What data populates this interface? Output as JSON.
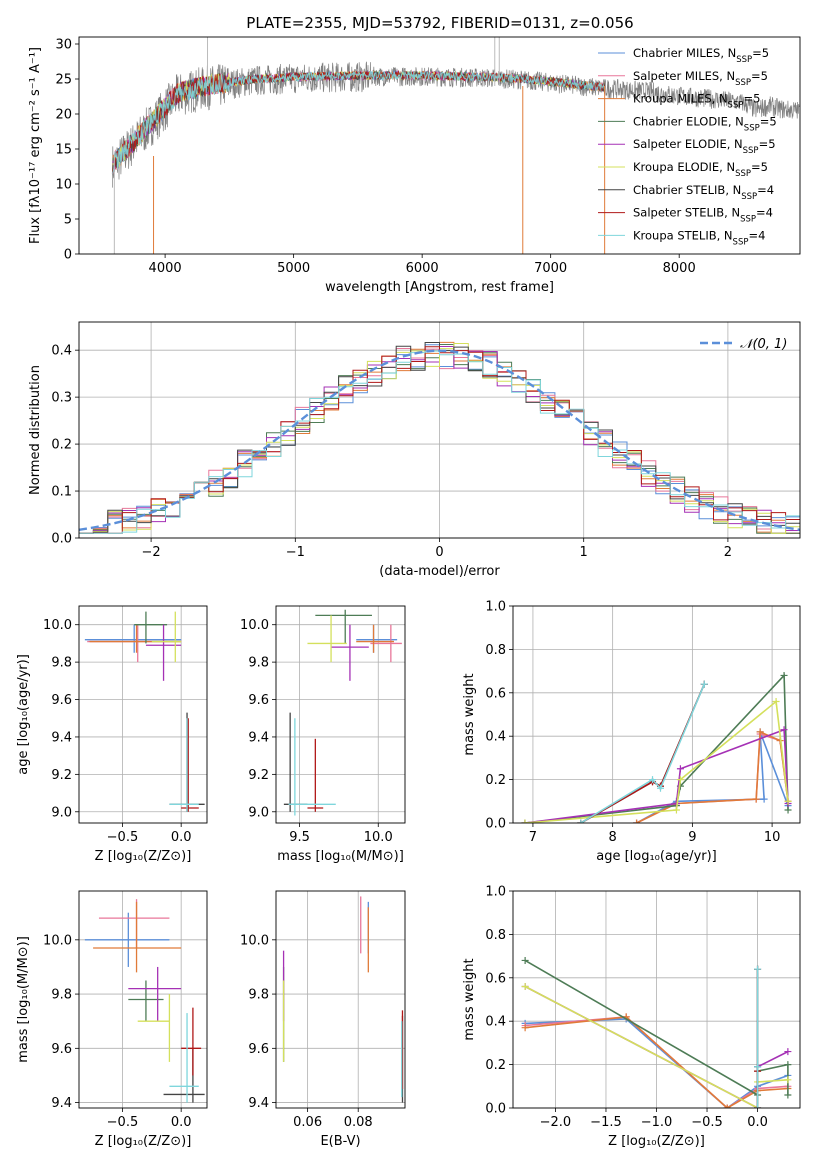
{
  "figure": {
    "title": "PLATE=2355, MJD=53792, FIBERID=0131, z=0.056"
  },
  "palette": {
    "MILES_Chabrier": "#5b8fd9",
    "MILES_Salpeter": "#e8779a",
    "MILES_Kroupa": "#e07b39",
    "ELODIE_Chabrier": "#4e7c56",
    "ELODIE_Salpeter": "#a531b5",
    "ELODIE_Kroupa": "#d4e05c",
    "STELIB_Chabrier": "#444444",
    "STELIB_Salpeter": "#b01818",
    "STELIB_Kroupa": "#7fd6dc",
    "gaussian": "#5b8fd9",
    "data_gray": "#808080"
  },
  "legend_spectrum": [
    {
      "key": "MILES_Chabrier",
      "text": "Chabrier MILES, N",
      "sub": "SSP",
      "eq": "=5"
    },
    {
      "key": "MILES_Salpeter",
      "text": "Salpeter MILES, N",
      "sub": "SSP",
      "eq": "=5"
    },
    {
      "key": "MILES_Kroupa",
      "text": "Kroupa MILES, N",
      "sub": "SSP",
      "eq": "=5"
    },
    {
      "key": "ELODIE_Chabrier",
      "text": "Chabrier ELODIE, N",
      "sub": "SSP",
      "eq": "=5"
    },
    {
      "key": "ELODIE_Salpeter",
      "text": "Salpeter ELODIE, N",
      "sub": "SSP",
      "eq": "=5"
    },
    {
      "key": "ELODIE_Kroupa",
      "text": "Kroupa ELODIE, N",
      "sub": "SSP",
      "eq": "=5"
    },
    {
      "key": "STELIB_Chabrier",
      "text": "Chabrier STELIB, N",
      "sub": "SSP",
      "eq": "=4"
    },
    {
      "key": "STELIB_Salpeter",
      "text": "Salpeter STELIB, N",
      "sub": "SSP",
      "eq": "=4"
    },
    {
      "key": "STELIB_Kroupa",
      "text": "Kroupa STELIB, N",
      "sub": "SSP",
      "eq": "=4"
    }
  ],
  "chart_data": [
    {
      "id": "spectrum",
      "type": "line",
      "xlabel": "wavelength [Angstrom, rest frame]",
      "ylabel": "Flux [fλ10⁻¹⁷ erg cm⁻² s⁻¹ A⁻¹]",
      "xlim": [
        3330,
        8940
      ],
      "ylim": [
        0,
        31
      ],
      "xticks": [
        4000,
        5000,
        6000,
        7000,
        8000
      ],
      "yticks": [
        0,
        5,
        10,
        15,
        20,
        25,
        30
      ],
      "grid": false,
      "continuum_model": {
        "x": [
          3600,
          3700,
          3800,
          3900,
          4000,
          4100,
          4300,
          4500,
          4700,
          5000,
          5500,
          6000,
          6500,
          6800,
          7000,
          7300,
          7500,
          7800,
          8000,
          8300,
          8500,
          8600,
          8700,
          8800,
          8940
        ],
        "y": [
          13,
          15,
          17,
          19,
          21,
          23,
          24,
          24.5,
          25,
          25.3,
          25.5,
          25.5,
          25.3,
          25.0,
          24.6,
          24.0,
          23.7,
          23.3,
          22.7,
          22.2,
          21.7,
          20.7,
          21.3,
          20.8,
          20.6
        ]
      },
      "data_extent": [
        3590,
        7420
      ],
      "spikes": [
        {
          "x": 3605,
          "y": [
            0,
            14
          ],
          "color": "#bbbbbb"
        },
        {
          "x": 3910,
          "y": [
            0,
            14
          ],
          "color": "#e07b39"
        },
        {
          "x": 6783,
          "y": [
            0,
            24
          ],
          "color": "#e07b39"
        },
        {
          "x": 7420,
          "y": [
            0,
            24
          ],
          "color": "#e07b39"
        },
        {
          "x": 4330,
          "y": [
            24,
            31
          ],
          "color": "#bbbbbb"
        },
        {
          "x": 6565,
          "y": [
            24,
            31
          ],
          "color": "#bbbbbb"
        },
        {
          "x": 6600,
          "y": [
            24,
            31
          ],
          "color": "#bbbbbb"
        }
      ],
      "legend_position": "upper right"
    },
    {
      "id": "residuals",
      "type": "line",
      "xlabel": "(data-model)/error",
      "ylabel": "Normed distribution",
      "xlim": [
        -2.5,
        2.5
      ],
      "ylim": [
        0,
        0.46
      ],
      "xticks": [
        -2,
        -1,
        0,
        1,
        2
      ],
      "yticks": [
        0.0,
        0.1,
        0.2,
        0.3,
        0.4
      ],
      "grid": true,
      "histogram_bin_width": 0.1,
      "gaussian_label": "𝒩(0, 1)",
      "legend_position": "upper right"
    },
    {
      "id": "age_vs_Z",
      "type": "scatter",
      "xlabel": "Z [log₁₀(Z/Z⊙)]",
      "ylabel": "age  [log₁₀(age/yr)]",
      "xlim": [
        -0.87,
        0.22
      ],
      "ylim": [
        8.94,
        10.1
      ],
      "xticks": [
        -0.5,
        0.0
      ],
      "yticks": [
        9.0,
        9.2,
        9.4,
        9.6,
        9.8,
        10.0
      ],
      "grid": true,
      "points": [
        {
          "key": "MILES_Chabrier",
          "x": -0.4,
          "y": 9.92,
          "ex": [
            -0.82,
            0.0
          ],
          "ey": [
            9.85,
            10.0
          ]
        },
        {
          "key": "MILES_Salpeter",
          "x": -0.37,
          "y": 9.91,
          "ex": [
            -0.8,
            0.0
          ],
          "ey": [
            9.8,
            10.0
          ]
        },
        {
          "key": "MILES_Kroupa",
          "x": -0.38,
          "y": 9.91,
          "ex": [
            -0.78,
            0.0
          ],
          "ey": [
            9.85,
            10.0
          ]
        },
        {
          "key": "ELODIE_Chabrier",
          "x": -0.3,
          "y": 10.0,
          "ex": [
            -0.4,
            -0.12
          ],
          "ey": [
            9.9,
            10.07
          ]
        },
        {
          "key": "ELODIE_Salpeter",
          "x": -0.15,
          "y": 9.89,
          "ex": [
            -0.3,
            0.0
          ],
          "ey": [
            9.7,
            10.0
          ]
        },
        {
          "key": "ELODIE_Kroupa",
          "x": -0.05,
          "y": 9.91,
          "ex": [
            -0.25,
            0.0
          ],
          "ey": [
            9.8,
            10.07
          ]
        },
        {
          "key": "STELIB_Chabrier",
          "x": 0.05,
          "y": 9.04,
          "ex": [
            -0.1,
            0.2
          ],
          "ey": [
            9.0,
            9.53
          ]
        },
        {
          "key": "STELIB_Salpeter",
          "x": 0.06,
          "y": 9.02,
          "ex": [
            0.0,
            0.15
          ],
          "ey": [
            9.0,
            9.5
          ]
        },
        {
          "key": "STELIB_Kroupa",
          "x": 0.05,
          "y": 9.04,
          "ex": [
            -0.1,
            0.15
          ],
          "ey": [
            9.0,
            9.5
          ]
        }
      ]
    },
    {
      "id": "age_vs_mass",
      "type": "scatter",
      "xlabel": "mass [log₁₀(M/M⊙)]",
      "ylabel": "",
      "xlim": [
        9.35,
        10.17
      ],
      "ylim": [
        8.94,
        10.1
      ],
      "xticks": [
        9.5,
        10.0
      ],
      "yticks": [
        9.0,
        9.2,
        9.4,
        9.6,
        9.8,
        10.0
      ],
      "grid": true,
      "points": [
        {
          "key": "MILES_Chabrier",
          "x": 9.97,
          "y": 9.92,
          "ex": [
            9.86,
            10.12
          ],
          "ey": [
            9.85,
            10.0
          ]
        },
        {
          "key": "MILES_Salpeter",
          "x": 10.08,
          "y": 9.9,
          "ex": [
            9.95,
            10.15
          ],
          "ey": [
            9.8,
            10.0
          ]
        },
        {
          "key": "MILES_Kroupa",
          "x": 9.97,
          "y": 9.91,
          "ex": [
            9.86,
            10.1
          ],
          "ey": [
            9.85,
            10.0
          ]
        },
        {
          "key": "ELODIE_Chabrier",
          "x": 9.79,
          "y": 10.05,
          "ex": [
            9.6,
            9.96
          ],
          "ey": [
            9.9,
            10.08
          ]
        },
        {
          "key": "ELODIE_Salpeter",
          "x": 9.82,
          "y": 9.88,
          "ex": [
            9.7,
            9.94
          ],
          "ey": [
            9.7,
            10.0
          ]
        },
        {
          "key": "ELODIE_Kroupa",
          "x": 9.7,
          "y": 9.9,
          "ex": [
            9.55,
            9.8
          ],
          "ey": [
            9.8,
            10.05
          ]
        },
        {
          "key": "STELIB_Chabrier",
          "x": 9.44,
          "y": 9.04,
          "ex": [
            9.4,
            9.55
          ],
          "ey": [
            9.0,
            9.53
          ]
        },
        {
          "key": "STELIB_Salpeter",
          "x": 9.6,
          "y": 9.02,
          "ex": [
            9.55,
            9.65
          ],
          "ey": [
            9.0,
            9.39
          ]
        },
        {
          "key": "STELIB_Kroupa",
          "x": 9.47,
          "y": 9.04,
          "ex": [
            9.43,
            9.73
          ],
          "ey": [
            8.98,
            9.5
          ]
        }
      ]
    },
    {
      "id": "mass_weight_vs_age",
      "type": "line",
      "xlabel": "age  [log₁₀(age/yr)]",
      "ylabel": "mass weight",
      "xlim": [
        6.75,
        10.35
      ],
      "ylim": [
        0,
        1.0
      ],
      "xticks": [
        7,
        8,
        9,
        10
      ],
      "yticks": [
        0.0,
        0.2,
        0.4,
        0.6,
        0.8,
        1.0
      ],
      "grid": true,
      "series": [
        {
          "key": "MILES_Chabrier",
          "x": [
            8.3,
            8.8,
            9.9,
            9.85,
            10.2
          ],
          "y": [
            0.0,
            0.1,
            0.11,
            0.42,
            0.08
          ]
        },
        {
          "key": "MILES_Salpeter",
          "x": [
            8.3,
            8.8,
            9.8,
            9.85,
            10.1,
            10.2
          ],
          "y": [
            0.0,
            0.09,
            0.11,
            0.41,
            0.38,
            0.1
          ]
        },
        {
          "key": "MILES_Kroupa",
          "x": [
            8.3,
            8.8,
            9.8,
            9.85,
            10.1,
            10.2
          ],
          "y": [
            0.0,
            0.09,
            0.11,
            0.42,
            0.38,
            0.1
          ]
        },
        {
          "key": "ELODIE_Chabrier",
          "x": [
            6.9,
            8.8,
            8.85,
            10.15,
            10.2
          ],
          "y": [
            0.0,
            0.08,
            0.17,
            0.68,
            0.06
          ]
        },
        {
          "key": "ELODIE_Salpeter",
          "x": [
            6.9,
            8.8,
            8.85,
            10.15,
            10.2
          ],
          "y": [
            0.0,
            0.09,
            0.25,
            0.43,
            0.09
          ]
        },
        {
          "key": "ELODIE_Kroupa",
          "x": [
            6.9,
            8.8,
            8.85,
            10.05,
            10.2
          ],
          "y": [
            0.0,
            0.06,
            0.2,
            0.56,
            0.1
          ]
        },
        {
          "key": "STELIB_Chabrier",
          "x": [
            7.6,
            8.5,
            8.6,
            9.15
          ],
          "y": [
            0.0,
            0.19,
            0.17,
            0.64
          ]
        },
        {
          "key": "STELIB_Salpeter",
          "x": [
            7.6,
            8.5,
            8.6,
            9.15
          ],
          "y": [
            0.0,
            0.19,
            0.17,
            0.64
          ]
        },
        {
          "key": "STELIB_Kroupa",
          "x": [
            7.6,
            8.5,
            8.6,
            9.15
          ],
          "y": [
            0.0,
            0.2,
            0.16,
            0.64
          ]
        }
      ]
    },
    {
      "id": "mass_vs_Z",
      "type": "scatter",
      "xlabel": "Z [log₁₀(Z/Z⊙)]",
      "ylabel": "mass [log₁₀(M/M⊙)]",
      "xlim": [
        -0.87,
        0.22
      ],
      "ylim": [
        9.38,
        10.18
      ],
      "xticks": [
        -0.5,
        0.0
      ],
      "yticks": [
        9.4,
        9.6,
        9.8,
        10.0
      ],
      "grid": true,
      "points": [
        {
          "key": "MILES_Chabrier",
          "x": -0.45,
          "y": 10.0,
          "ex": [
            -0.82,
            -0.1
          ],
          "ey": [
            9.9,
            10.1
          ]
        },
        {
          "key": "MILES_Salpeter",
          "x": -0.38,
          "y": 10.08,
          "ex": [
            -0.7,
            -0.1
          ],
          "ey": [
            9.97,
            10.15
          ]
        },
        {
          "key": "MILES_Kroupa",
          "x": -0.38,
          "y": 9.97,
          "ex": [
            -0.75,
            0.0
          ],
          "ey": [
            9.88,
            10.14
          ]
        },
        {
          "key": "ELODIE_Chabrier",
          "x": -0.3,
          "y": 9.78,
          "ex": [
            -0.45,
            -0.15
          ],
          "ey": [
            9.7,
            9.85
          ]
        },
        {
          "key": "ELODIE_Salpeter",
          "x": -0.2,
          "y": 9.82,
          "ex": [
            -0.45,
            0.0
          ],
          "ey": [
            9.7,
            9.9
          ]
        },
        {
          "key": "ELODIE_Kroupa",
          "x": -0.1,
          "y": 9.7,
          "ex": [
            -0.37,
            -0.1
          ],
          "ey": [
            9.55,
            9.8
          ]
        },
        {
          "key": "STELIB_Chabrier",
          "x": 0.1,
          "y": 9.43,
          "ex": [
            -0.15,
            0.2
          ],
          "ey": [
            9.4,
            9.6
          ]
        },
        {
          "key": "STELIB_Salpeter",
          "x": 0.1,
          "y": 9.6,
          "ex": [
            0.0,
            0.17
          ],
          "ey": [
            9.5,
            9.75
          ]
        },
        {
          "key": "STELIB_Kroupa",
          "x": 0.05,
          "y": 9.46,
          "ex": [
            -0.1,
            0.15
          ],
          "ey": [
            9.4,
            9.73
          ]
        }
      ]
    },
    {
      "id": "mass_vs_ebv",
      "type": "scatter",
      "xlabel": "E(B-V)",
      "ylabel": "",
      "xlim": [
        0.0475,
        0.0985
      ],
      "ylim": [
        9.38,
        10.18
      ],
      "xticks": [
        0.06,
        0.08
      ],
      "yticks": [
        9.4,
        9.6,
        9.8,
        10.0
      ],
      "grid": true,
      "points": [
        {
          "key": "MILES_Chabrier",
          "x": 0.084,
          "y": 10.0,
          "ey": [
            9.95,
            10.14
          ]
        },
        {
          "key": "MILES_Salpeter",
          "x": 0.081,
          "y": 10.05,
          "ey": [
            9.95,
            10.16
          ]
        },
        {
          "key": "MILES_Kroupa",
          "x": 0.084,
          "y": 9.97,
          "ey": [
            9.88,
            10.12
          ]
        },
        {
          "key": "ELODIE_Chabrier",
          "x": 0.0505,
          "y": 9.78,
          "ey": [
            9.55,
            9.9
          ]
        },
        {
          "key": "ELODIE_Salpeter",
          "x": 0.0505,
          "y": 9.82,
          "ey": [
            9.7,
            9.96
          ]
        },
        {
          "key": "ELODIE_Kroupa",
          "x": 0.0505,
          "y": 9.7,
          "ey": [
            9.55,
            9.85
          ]
        },
        {
          "key": "STELIB_Chabrier",
          "x": 0.0975,
          "y": 9.43,
          "ey": [
            9.4,
            9.72
          ]
        },
        {
          "key": "STELIB_Salpeter",
          "x": 0.0975,
          "y": 9.6,
          "ey": [
            9.45,
            9.74
          ]
        },
        {
          "key": "STELIB_Kroupa",
          "x": 0.0972,
          "y": 9.46,
          "ey": [
            9.42,
            9.7
          ]
        }
      ]
    },
    {
      "id": "mass_weight_vs_Z",
      "type": "line",
      "xlabel": "Z [log₁₀(Z/Z⊙)]",
      "ylabel": "mass weight",
      "xlim": [
        -2.42,
        0.42
      ],
      "ylim": [
        0,
        1.0
      ],
      "xticks": [
        -2.0,
        -1.5,
        -1.0,
        -0.5,
        0.0
      ],
      "yticks": [
        0.0,
        0.2,
        0.4,
        0.6,
        0.8,
        1.0
      ],
      "grid": true,
      "series": [
        {
          "key": "MILES_Chabrier",
          "x": [
            -2.3,
            -1.3,
            -0.3,
            0.0,
            0.3
          ],
          "y": [
            0.39,
            0.41,
            0.0,
            0.1,
            0.15
          ]
        },
        {
          "key": "MILES_Salpeter",
          "x": [
            -2.3,
            -1.3,
            -0.3,
            0.0,
            0.3
          ],
          "y": [
            0.38,
            0.42,
            0.0,
            0.09,
            0.1
          ]
        },
        {
          "key": "MILES_Kroupa",
          "x": [
            -2.3,
            -1.3,
            -0.3,
            0.0,
            0.3
          ],
          "y": [
            0.37,
            0.42,
            0.0,
            0.08,
            0.09
          ]
        },
        {
          "key": "ELODIE_Chabrier",
          "x": [
            -2.3,
            0.0,
            0.0,
            0.3,
            0.3
          ],
          "y": [
            0.68,
            0.06,
            0.17,
            0.2,
            0.06
          ]
        },
        {
          "key": "ELODIE_Salpeter",
          "x": [
            -2.3,
            0.0,
            0.0,
            0.3
          ],
          "y": [
            0.56,
            0.0,
            0.19,
            0.26
          ]
        },
        {
          "key": "ELODIE_Kroupa",
          "x": [
            -2.3,
            0.0,
            0.0,
            0.3
          ],
          "y": [
            0.56,
            0.0,
            0.12,
            0.13
          ]
        },
        {
          "key": "STELIB_Chabrier",
          "x": [
            0.0,
            0.0,
            0.0
          ],
          "y": [
            0.0,
            0.19,
            0.64
          ]
        },
        {
          "key": "STELIB_Salpeter",
          "x": [
            0.0,
            0.0,
            0.0
          ],
          "y": [
            0.0,
            0.17,
            0.64
          ]
        },
        {
          "key": "STELIB_Kroupa",
          "x": [
            0.0,
            0.0,
            0.0
          ],
          "y": [
            0.0,
            0.19,
            0.64
          ]
        }
      ]
    }
  ]
}
